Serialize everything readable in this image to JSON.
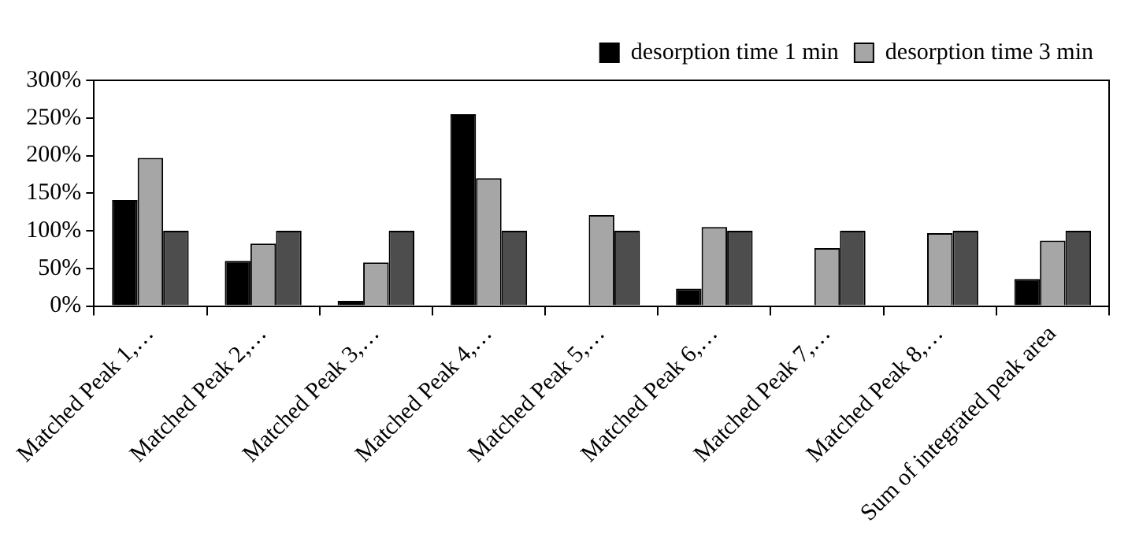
{
  "chart_data": {
    "type": "bar",
    "categories": [
      "Matched Peak 1,…",
      "Matched Peak 2,…",
      "Matched Peak 3,…",
      "Matched Peak 4,…",
      "Matched Peak 5,…",
      "Matched Peak 6,…",
      "Matched Peak 7,…",
      "Matched Peak 8,…",
      "Sum of integrated peak area"
    ],
    "series": [
      {
        "name": "desorption time 1 min",
        "color": "#000000",
        "values": [
          141,
          60,
          7,
          255,
          null,
          23,
          null,
          null,
          36
        ]
      },
      {
        "name": "desorption time 3 min",
        "color": "#a6a6a6",
        "values": [
          197,
          83,
          58,
          170,
          121,
          105,
          77,
          97,
          87
        ]
      },
      {
        "color": "#4d4d4d",
        "values": [
          100,
          100,
          100,
          100,
          100,
          100,
          100,
          100,
          100
        ]
      }
    ],
    "ylim": [
      0,
      300
    ],
    "yticks": [
      {
        "value": 0,
        "label": "0%"
      },
      {
        "value": 50,
        "label": "50%"
      },
      {
        "value": 100,
        "label": "100%"
      },
      {
        "value": 150,
        "label": "150%"
      },
      {
        "value": 200,
        "label": "200%"
      },
      {
        "value": 250,
        "label": "250%"
      },
      {
        "value": 300,
        "label": "300%"
      }
    ],
    "grid": false,
    "legend": "top right"
  }
}
